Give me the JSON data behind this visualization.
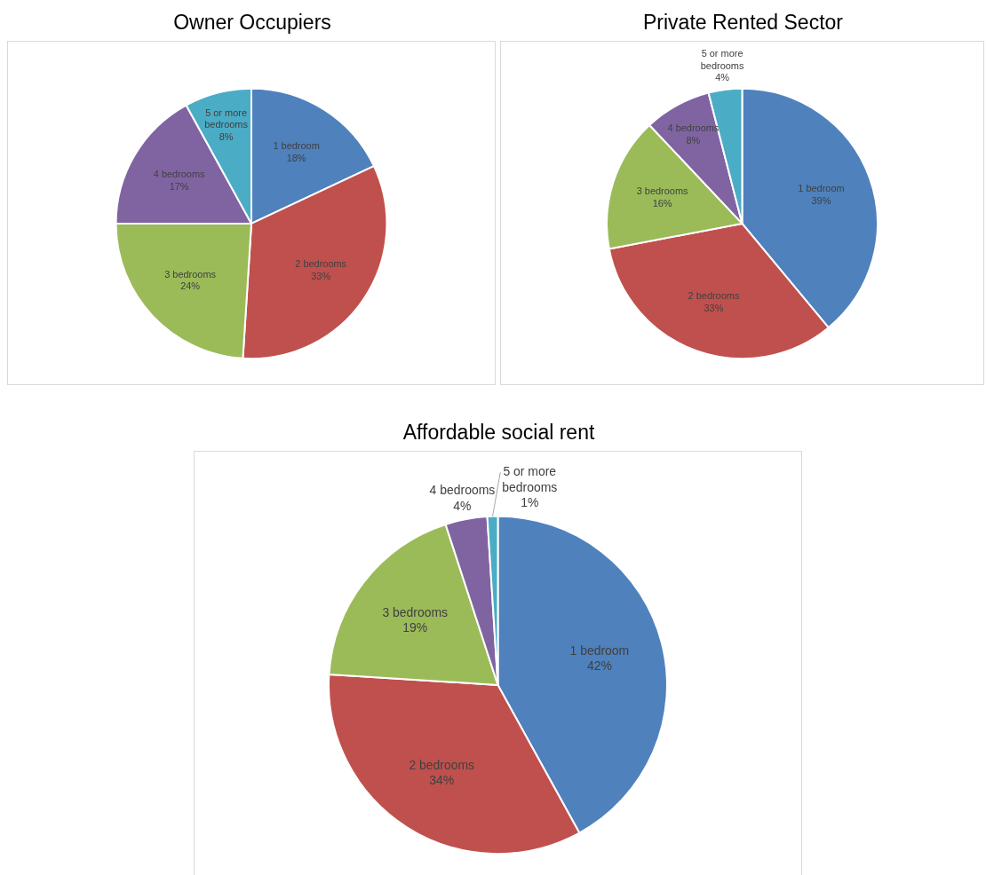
{
  "chart_data": [
    {
      "type": "pie",
      "title": "Owner Occupiers",
      "categories": [
        "1 bedroom",
        "2 bedrooms",
        "3 bedrooms",
        "4 bedrooms",
        "5 or more bedrooms"
      ],
      "values": [
        18,
        33,
        24,
        17,
        8
      ],
      "colors": [
        "#4f81bd",
        "#c0504d",
        "#9bbb59",
        "#8064a2",
        "#4bacc6"
      ],
      "value_labels": [
        "18%",
        "33%",
        "24%",
        "17%",
        "8%"
      ]
    },
    {
      "type": "pie",
      "title": "Private Rented Sector",
      "categories": [
        "1 bedroom",
        "2 bedrooms",
        "3 bedrooms",
        "4 bedrooms",
        "5 or more bedrooms"
      ],
      "values": [
        39,
        33,
        16,
        8,
        4
      ],
      "colors": [
        "#4f81bd",
        "#c0504d",
        "#9bbb59",
        "#8064a2",
        "#4bacc6"
      ],
      "value_labels": [
        "39%",
        "33%",
        "16%",
        "8%",
        "4%"
      ]
    },
    {
      "type": "pie",
      "title": "Affordable social rent",
      "categories": [
        "1 bedroom",
        "2 bedrooms",
        "3 bedrooms",
        "4 bedrooms",
        "5 or more bedrooms"
      ],
      "values": [
        42,
        34,
        19,
        4,
        1
      ],
      "colors": [
        "#4f81bd",
        "#c0504d",
        "#9bbb59",
        "#8064a2",
        "#4bacc6"
      ],
      "value_labels": [
        "42%",
        "34%",
        "19%",
        "4%",
        "1%"
      ]
    }
  ]
}
